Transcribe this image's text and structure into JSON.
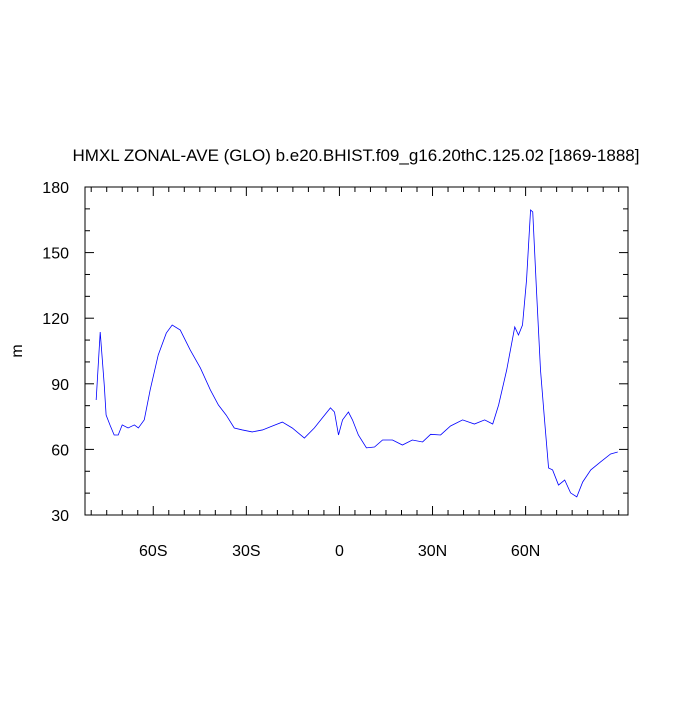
{
  "chart_data": {
    "type": "line",
    "title": "HMXL ZONAL-AVE (GLO) b.e20.BHIST.f09_g16.20thC.125.02 [1869-1888]",
    "y_label": "m",
    "xlim": [
      -82,
      93
    ],
    "ylim": [
      30,
      180
    ],
    "xticks": [
      {
        "value": -60,
        "label": "60S"
      },
      {
        "value": -30,
        "label": "30S"
      },
      {
        "value": 0,
        "label": "0"
      },
      {
        "value": 30,
        "label": "30N"
      },
      {
        "value": 60,
        "label": "60N"
      }
    ],
    "yticks": [
      30,
      60,
      90,
      120,
      150,
      180
    ],
    "xminorticks": [
      -80,
      -75,
      -70,
      -65,
      -55,
      -50,
      -45,
      -40,
      -35,
      -25,
      -20,
      -15,
      -10,
      -5,
      5,
      10,
      15,
      20,
      25,
      35,
      40,
      45,
      50,
      55,
      65,
      70,
      75,
      80,
      85,
      90
    ],
    "yminorticks": [
      40,
      50,
      70,
      80,
      100,
      110,
      130,
      140,
      160,
      170
    ],
    "grid": false,
    "series": [
      {
        "color": "#0000ff",
        "x": [
          -78.4,
          -77.1,
          -75.8,
          -75.2,
          -73.9,
          -72.6,
          -71.3,
          -70.0,
          -68.1,
          -66.1,
          -64.8,
          -62.9,
          -61.0,
          -58.4,
          -55.8,
          -53.9,
          -51.3,
          -48.1,
          -44.8,
          -41.6,
          -39.0,
          -36.5,
          -33.9,
          -31.3,
          -28.1,
          -24.8,
          -21.6,
          -18.4,
          -15.2,
          -11.3,
          -8.1,
          -5.5,
          -2.9,
          -1.6,
          -0.3,
          1.0,
          2.9,
          4.2,
          6.1,
          8.7,
          11.3,
          13.9,
          17.1,
          20.3,
          23.5,
          26.8,
          29.4,
          32.6,
          35.8,
          39.7,
          43.5,
          46.8,
          49.4,
          51.3,
          53.9,
          56.5,
          57.7,
          59.0,
          60.3,
          61.6,
          62.3,
          63.5,
          64.8,
          66.1,
          67.4,
          68.7,
          70.6,
          72.6,
          74.5,
          76.5,
          78.4,
          81.0,
          84.2,
          87.4,
          89.7
        ],
        "values": [
          82.6,
          113.7,
          89.5,
          75.7,
          71.0,
          66.6,
          66.6,
          71.2,
          69.8,
          71.2,
          69.8,
          73.5,
          87.2,
          103.2,
          113.2,
          116.9,
          114.6,
          105.5,
          97.2,
          87.2,
          80.3,
          75.7,
          69.8,
          68.9,
          68.0,
          68.9,
          70.7,
          72.5,
          69.8,
          65.2,
          69.8,
          74.4,
          79.0,
          77.1,
          66.6,
          73.5,
          77.1,
          73.5,
          66.6,
          60.7,
          61.1,
          64.3,
          64.3,
          62.0,
          64.3,
          63.4,
          66.9,
          66.6,
          70.7,
          73.5,
          71.6,
          73.5,
          71.6,
          80.3,
          96.3,
          116.0,
          112.3,
          116.9,
          137.5,
          169.5,
          168.6,
          132.9,
          96.3,
          73.5,
          51.5,
          50.6,
          43.7,
          46.0,
          40.1,
          38.3,
          45.1,
          50.6,
          54.3,
          57.9,
          58.8
        ]
      }
    ]
  }
}
